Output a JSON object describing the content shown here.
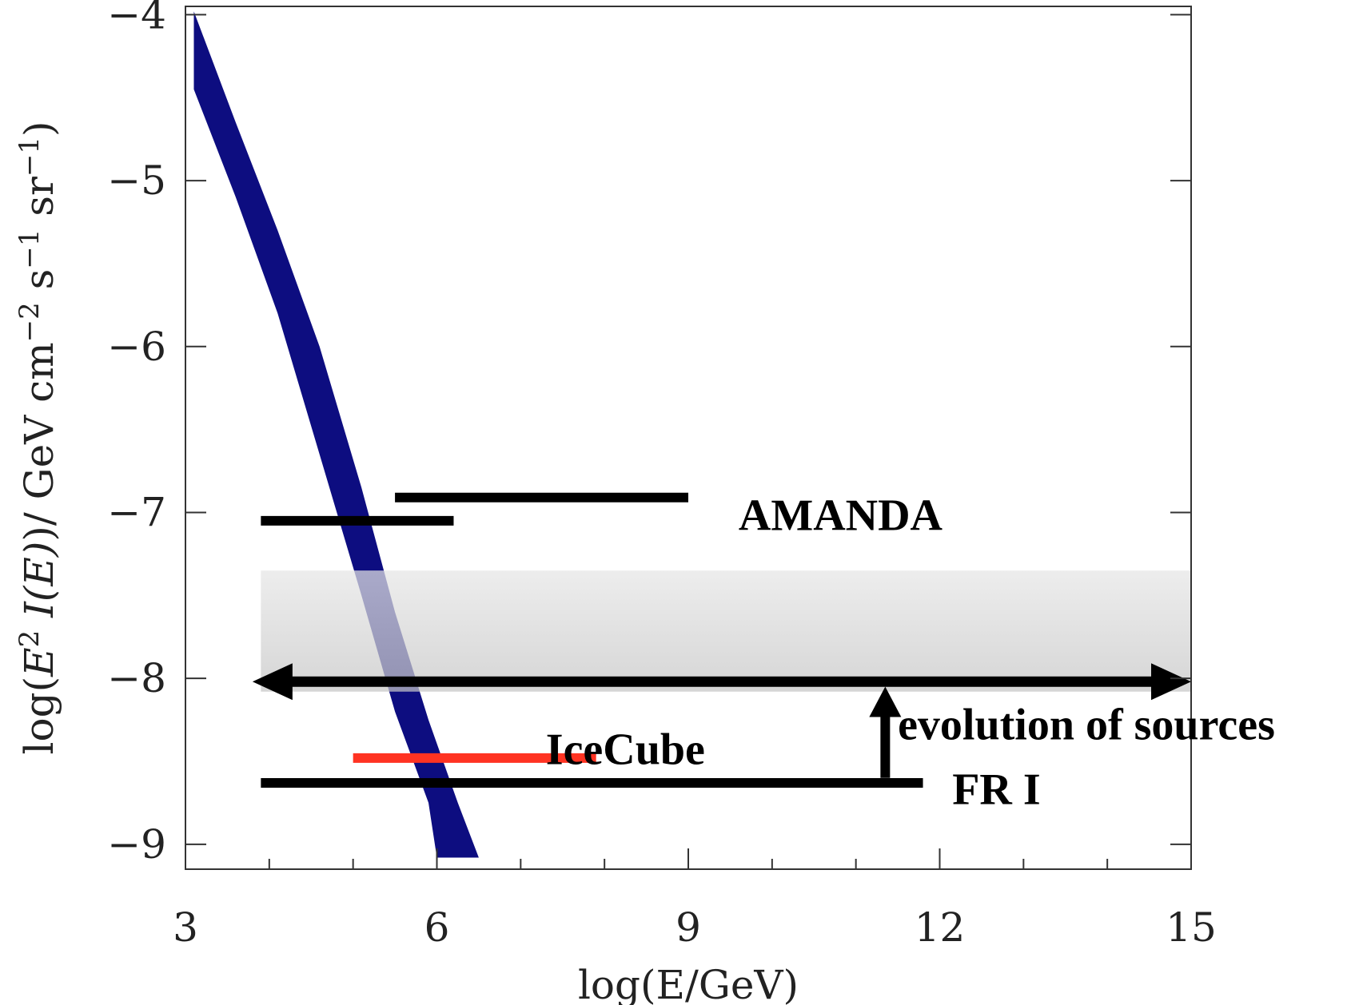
{
  "chart_data": {
    "type": "line",
    "title": "",
    "xlabel": "log(E/GeV)",
    "ylabel_parts": {
      "prefix": "log(",
      "E": "E",
      "E_sup": "2",
      "I": "I",
      "I_arg": "(E)",
      "suffix": ")/ GeV cm",
      "cm_sup": "−2",
      "s": " s",
      "s_sup": "−1",
      "sr": " sr",
      "sr_sup": "−1",
      "close": ")"
    },
    "xlim": [
      3,
      15
    ],
    "ylim": [
      -9.15,
      -3.95
    ],
    "x_ticks": [
      3,
      6,
      9,
      12,
      15
    ],
    "x_tick_labels": [
      "3",
      "6",
      "9",
      "12",
      "15"
    ],
    "y_ticks": [
      -4,
      -5,
      -6,
      -7,
      -8,
      -9
    ],
    "y_tick_labels": [
      "−4",
      "−5",
      "−6",
      "−7",
      "−8",
      "−9"
    ],
    "x_minor_ticks": [
      4,
      5,
      7,
      8,
      10,
      11,
      13,
      14
    ],
    "band": {
      "color": "#0d0d80",
      "upper": [
        [
          3.1,
          -3.98
        ],
        [
          3.6,
          -4.65
        ],
        [
          4.1,
          -5.3
        ],
        [
          4.6,
          -6.0
        ],
        [
          5.1,
          -6.85
        ],
        [
          5.5,
          -7.6
        ],
        [
          5.9,
          -8.25
        ],
        [
          6.25,
          -8.75
        ],
        [
          6.5,
          -9.08
        ]
      ],
      "lower": [
        [
          3.1,
          -4.45
        ],
        [
          3.6,
          -5.1
        ],
        [
          4.1,
          -5.8
        ],
        [
          4.6,
          -6.65
        ],
        [
          5.1,
          -7.5
        ],
        [
          5.5,
          -8.2
        ],
        [
          5.9,
          -8.75
        ],
        [
          6.0,
          -9.08
        ]
      ]
    },
    "shaded_region": {
      "x": [
        3.9,
        15
      ],
      "y": [
        -8.08,
        -7.35
      ],
      "color": "#cccccc"
    },
    "series": [
      {
        "x": [
          5.5,
          9.0
        ],
        "y": [
          -6.91,
          -6.91
        ],
        "color": "#000000"
      },
      {
        "x": [
          3.9,
          6.2
        ],
        "y": [
          -7.05,
          -7.05
        ],
        "color": "#000000"
      },
      {
        "x": [
          5.0,
          7.9
        ],
        "y": [
          -8.48,
          -8.48
        ],
        "color": "#ff3322"
      },
      {
        "x": [
          3.9,
          11.8
        ],
        "y": [
          -8.63,
          -8.63
        ],
        "color": "#000000"
      }
    ],
    "double_arrow": {
      "x": [
        3.8,
        15
      ],
      "y": -8.02,
      "color": "#000000"
    },
    "up_arrow": {
      "x": 11.35,
      "y": [
        -8.6,
        -8.05
      ],
      "color": "#000000"
    },
    "annotations": [
      {
        "text": "AMANDA",
        "x": 9.6,
        "y": -7.02
      },
      {
        "text": "IceCube",
        "x": 7.3,
        "y": -8.43
      },
      {
        "text": "evolution of sources",
        "x": 11.5,
        "y": -8.28
      },
      {
        "text": "FR I",
        "x": 12.15,
        "y": -8.67
      }
    ]
  }
}
